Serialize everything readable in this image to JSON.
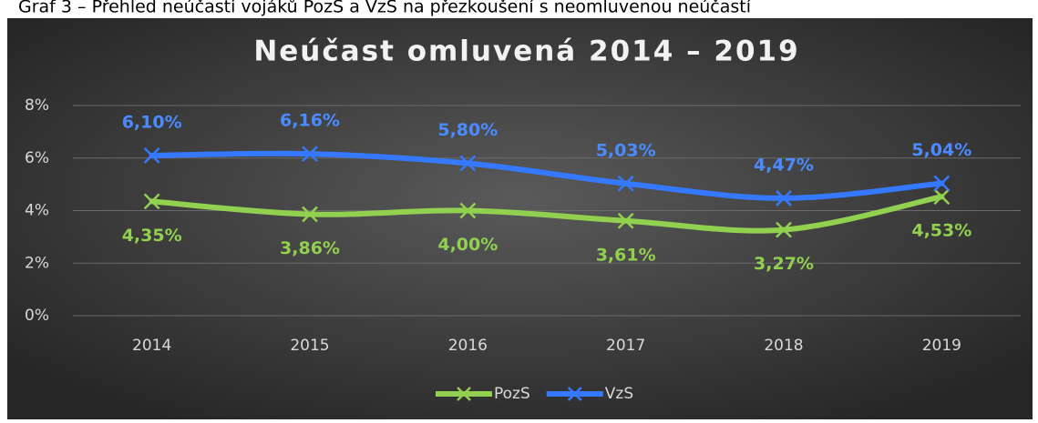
{
  "caption": "Graf 3 – Přehled neúčasti vojáků PozS a VzS na přezkoušení s neomluvenou neúčastí",
  "chart_data": {
    "type": "line",
    "title": "Neúčast omluvená 2014 – 2019",
    "categories": [
      "2014",
      "2015",
      "2016",
      "2017",
      "2018",
      "2019"
    ],
    "series": [
      {
        "name": "PozS",
        "color": "#92d050",
        "values": [
          4.35,
          3.86,
          4.0,
          3.61,
          3.27,
          4.53
        ],
        "value_labels": [
          "4,35%",
          "3,86%",
          "4,00%",
          "3,61%",
          "3,27%",
          "4,53%"
        ]
      },
      {
        "name": "VzS",
        "color": "#3479ff",
        "values": [
          6.1,
          6.16,
          5.8,
          5.03,
          4.47,
          5.04
        ],
        "value_labels": [
          "6,10%",
          "6,16%",
          "5,80%",
          "5,03%",
          "4,47%",
          "5,04%"
        ]
      }
    ],
    "ylim": [
      0,
      8
    ],
    "yticks": [
      {
        "value": 0,
        "label": "0%"
      },
      {
        "value": 2,
        "label": "2%"
      },
      {
        "value": 4,
        "label": "4%"
      },
      {
        "value": 6,
        "label": "6%"
      },
      {
        "value": 8,
        "label": "8%"
      }
    ],
    "grid": true,
    "legend": "bottom"
  }
}
